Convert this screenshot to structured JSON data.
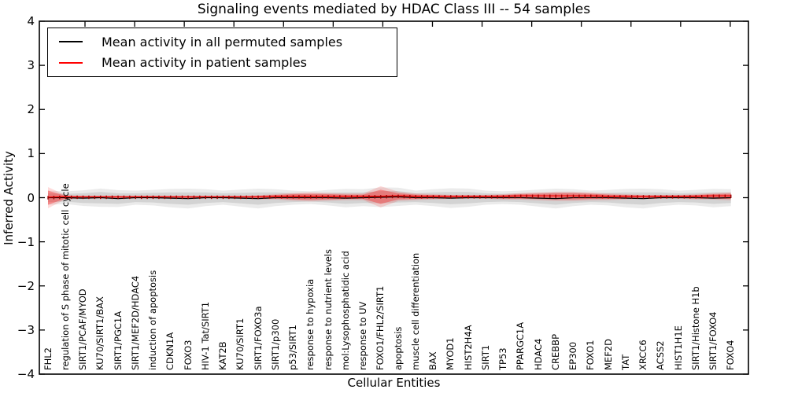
{
  "title": "Signaling events mediated by HDAC Class III -- 54 samples",
  "axes": {
    "ylabel": "Inferred Activity",
    "xlabel": "Cellular Entities",
    "ytick_labels": [
      "4",
      "3",
      "2",
      "1",
      "0",
      "−1",
      "−2",
      "−3",
      "−4"
    ]
  },
  "legend": {
    "items": [
      {
        "label": "Mean activity in all permuted samples",
        "color": "#000000"
      },
      {
        "label": "Mean activity in patient samples",
        "color": "#ff0000"
      }
    ]
  },
  "chart_data": {
    "type": "line",
    "title": "Signaling events mediated by HDAC Class III -- 54 samples",
    "xlabel": "Cellular Entities",
    "ylabel": "Inferred Activity",
    "ylim": [
      -4,
      4
    ],
    "yticks": [
      4,
      3,
      2,
      1,
      0,
      -1,
      -2,
      -3,
      -4
    ],
    "grid": false,
    "legend_position": "upper left",
    "categories": [
      "FHL2",
      "regulation of S phase of mitotic cell cycle",
      "SIRT1/PCAF/MYOD",
      "KU70/SIRT1/BAX",
      "SIRT1/PGC1A",
      "SIRT1/MEF2D/HDAC4",
      "induction of apoptosis",
      "CDKN1A",
      "FOXO3",
      "HIV-1 Tat/SIRT1",
      "KAT2B",
      "KU70/SIRT1",
      "SIRT1/FOXO3a",
      "SIRT1/p300",
      "p53/SIRT1",
      "response to hypoxia",
      "response to nutrient levels",
      "mol:Lysophosphatidic acid",
      "response to UV",
      "FOXO1/FHL2/SIRT1",
      "apoptosis",
      "muscle cell differentiation",
      "BAX",
      "MYOD1",
      "HIST2H4A",
      "SIRT1",
      "TP53",
      "PPARGC1A",
      "HDAC4",
      "CREBBP",
      "EP300",
      "FOXO1",
      "MEF2D",
      "TAT",
      "XRCC6",
      "ACSS2",
      "HIST1H1E",
      "SIRT1/Histone H1b",
      "SIRT1/FOXO4",
      "FOXO4"
    ],
    "series": [
      {
        "name": "Mean activity in all permuted samples",
        "color": "#000000",
        "band_color": "#bdbdbd",
        "mean": [
          0,
          0,
          -0.01,
          0,
          -0.02,
          0,
          0,
          -0.01,
          -0.02,
          0,
          0,
          -0.01,
          -0.02,
          0,
          0,
          0,
          0,
          -0.01,
          0,
          0.01,
          0.02,
          0,
          0,
          -0.01,
          0,
          0,
          0,
          0,
          -0.01,
          -0.02,
          0,
          0,
          0,
          -0.01,
          -0.02,
          0,
          0,
          0,
          -0.01,
          0
        ],
        "std": [
          0.1,
          0.09,
          0.11,
          0.13,
          0.12,
          0.1,
          0.11,
          0.13,
          0.14,
          0.12,
          0.1,
          0.12,
          0.14,
          0.12,
          0.1,
          0.09,
          0.11,
          0.13,
          0.12,
          0.14,
          0.13,
          0.1,
          0.12,
          0.14,
          0.13,
          0.1,
          0.09,
          0.1,
          0.12,
          0.14,
          0.12,
          0.1,
          0.11,
          0.13,
          0.14,
          0.12,
          0.1,
          0.11,
          0.13,
          0.12
        ]
      },
      {
        "name": "Mean activity in patient samples",
        "color": "#ff0000",
        "band_color": "#ff6666",
        "mean": [
          0,
          0.01,
          0.01,
          0.01,
          0.01,
          0.01,
          0.01,
          0.01,
          0.01,
          0.01,
          0.01,
          0.01,
          0.01,
          0.02,
          0.02,
          0.02,
          0.02,
          0.02,
          0.02,
          0.02,
          0.03,
          0.02,
          0.02,
          0.02,
          0.02,
          0.02,
          0.02,
          0.03,
          0.03,
          0.03,
          0.03,
          0.03,
          0.02,
          0.02,
          0.02,
          0.02,
          0.02,
          0.02,
          0.03,
          0.03
        ],
        "std": [
          0.16,
          0.03,
          0.02,
          0.02,
          0.02,
          0.02,
          0.02,
          0.02,
          0.02,
          0.02,
          0.02,
          0.02,
          0.03,
          0.04,
          0.06,
          0.07,
          0.06,
          0.05,
          0.05,
          0.16,
          0.07,
          0.05,
          0.04,
          0.03,
          0.03,
          0.03,
          0.04,
          0.05,
          0.06,
          0.07,
          0.07,
          0.06,
          0.05,
          0.04,
          0.03,
          0.03,
          0.03,
          0.04,
          0.05,
          0.06
        ]
      }
    ]
  }
}
